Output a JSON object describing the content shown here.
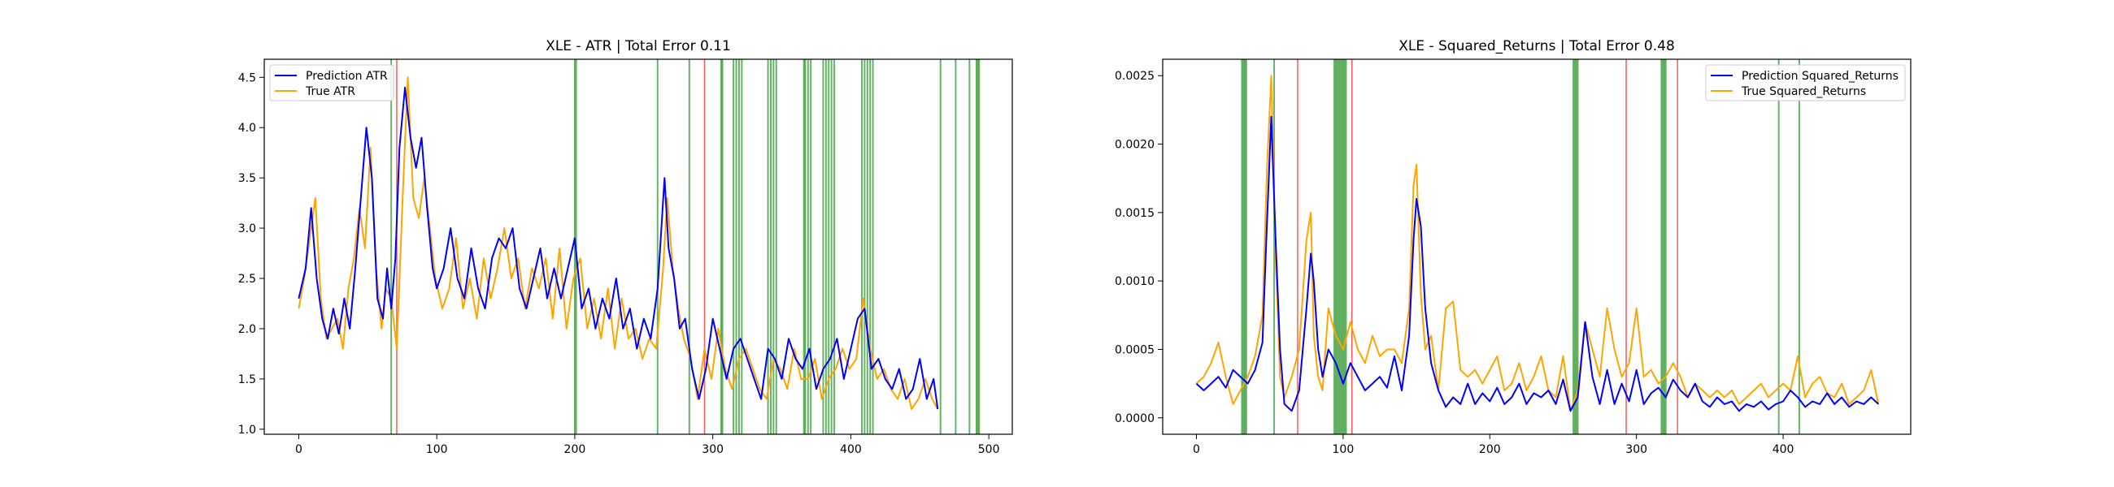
{
  "chart_data": [
    {
      "type": "line",
      "title": "XLE - ATR | Total Error 0.11",
      "xlabel": "",
      "ylabel": "",
      "xlim": [
        -25,
        517
      ],
      "ylim": [
        0.95,
        4.68
      ],
      "xticks": [
        0,
        100,
        200,
        300,
        400,
        500
      ],
      "yticks": [
        1.0,
        1.5,
        2.0,
        2.5,
        3.0,
        3.5,
        4.0,
        4.5
      ],
      "grid": false,
      "legend_position": "top-left",
      "colors": {
        "prediction": "#0000ff",
        "true": "#ffa500",
        "green_vline": "#008000",
        "red_vline": "#ff0000"
      },
      "series": [
        {
          "name": "Prediction ATR",
          "x": [
            0,
            5,
            9,
            13,
            17,
            21,
            25,
            29,
            33,
            37,
            41,
            45,
            49,
            53,
            57,
            61,
            64,
            67,
            70,
            73,
            77,
            81,
            85,
            89,
            93,
            97,
            100,
            105,
            110,
            115,
            120,
            125,
            130,
            135,
            140,
            145,
            150,
            155,
            160,
            165,
            170,
            175,
            180,
            185,
            190,
            195,
            200,
            205,
            210,
            215,
            220,
            225,
            230,
            235,
            240,
            245,
            250,
            255,
            260,
            265,
            268,
            272,
            276,
            280,
            285,
            290,
            295,
            300,
            305,
            310,
            315,
            320,
            325,
            330,
            335,
            340,
            345,
            350,
            355,
            360,
            365,
            370,
            375,
            380,
            385,
            390,
            395,
            400,
            405,
            410,
            415,
            420,
            425,
            430,
            435,
            440,
            445,
            450,
            455,
            460,
            463
          ],
          "values": [
            2.3,
            2.6,
            3.2,
            2.5,
            2.1,
            1.9,
            2.2,
            1.95,
            2.3,
            2.0,
            2.6,
            3.3,
            4.0,
            3.5,
            2.3,
            2.1,
            2.6,
            2.2,
            2.7,
            3.8,
            4.4,
            3.9,
            3.6,
            3.9,
            3.2,
            2.6,
            2.4,
            2.6,
            3.0,
            2.5,
            2.3,
            2.8,
            2.4,
            2.2,
            2.7,
            2.9,
            2.8,
            3.0,
            2.4,
            2.2,
            2.5,
            2.8,
            2.3,
            2.6,
            2.3,
            2.6,
            2.9,
            2.2,
            2.4,
            2.0,
            2.3,
            2.1,
            2.5,
            2.0,
            2.2,
            1.8,
            2.1,
            1.9,
            2.4,
            3.5,
            2.8,
            2.5,
            2.0,
            2.1,
            1.6,
            1.3,
            1.6,
            2.1,
            1.8,
            1.5,
            1.8,
            1.9,
            1.7,
            1.5,
            1.3,
            1.8,
            1.7,
            1.5,
            1.9,
            1.7,
            1.6,
            1.8,
            1.4,
            1.6,
            1.7,
            1.9,
            1.5,
            1.8,
            2.1,
            2.2,
            1.6,
            1.7,
            1.5,
            1.4,
            1.6,
            1.3,
            1.4,
            1.7,
            1.3,
            1.5,
            1.2
          ]
        },
        {
          "name": "True ATR",
          "x": [
            0,
            4,
            8,
            12,
            16,
            20,
            24,
            28,
            32,
            36,
            40,
            44,
            48,
            52,
            56,
            60,
            63,
            67,
            71,
            75,
            79,
            83,
            87,
            91,
            95,
            99,
            104,
            109,
            114,
            119,
            124,
            129,
            134,
            139,
            144,
            149,
            154,
            159,
            164,
            169,
            174,
            179,
            184,
            189,
            194,
            199,
            204,
            209,
            214,
            219,
            224,
            229,
            234,
            239,
            244,
            249,
            254,
            259,
            264,
            267,
            271,
            275,
            279,
            284,
            289,
            294,
            299,
            304,
            309,
            314,
            319,
            324,
            329,
            334,
            339,
            344,
            349,
            354,
            359,
            364,
            369,
            374,
            379,
            384,
            389,
            394,
            399,
            404,
            409,
            414,
            419,
            424,
            429,
            434,
            439,
            444,
            449,
            454,
            459,
            463
          ],
          "values": [
            2.2,
            2.5,
            2.9,
            3.3,
            2.3,
            1.9,
            2.0,
            2.1,
            1.8,
            2.4,
            2.7,
            3.2,
            2.8,
            3.8,
            2.6,
            2.0,
            2.4,
            2.3,
            1.8,
            3.2,
            4.5,
            3.3,
            3.1,
            3.5,
            3.0,
            2.5,
            2.2,
            2.4,
            2.9,
            2.2,
            2.5,
            2.1,
            2.7,
            2.3,
            2.6,
            3.0,
            2.5,
            2.7,
            2.2,
            2.6,
            2.4,
            2.7,
            2.1,
            2.8,
            2.0,
            2.5,
            2.7,
            2.0,
            2.3,
            1.9,
            2.4,
            1.8,
            2.3,
            1.9,
            2.0,
            1.7,
            1.9,
            1.8,
            2.6,
            3.3,
            2.6,
            2.2,
            1.9,
            1.7,
            1.3,
            1.8,
            1.5,
            2.0,
            1.6,
            1.4,
            1.7,
            1.8,
            1.6,
            1.4,
            1.3,
            1.7,
            1.6,
            1.4,
            1.8,
            1.5,
            1.5,
            1.7,
            1.3,
            1.5,
            1.6,
            1.8,
            1.6,
            1.7,
            2.3,
            1.8,
            1.5,
            1.6,
            1.4,
            1.3,
            1.5,
            1.2,
            1.3,
            1.5,
            1.3,
            1.2
          ]
        }
      ],
      "vlines_green": [
        67,
        200,
        201,
        260,
        283,
        306,
        307,
        315,
        317,
        319,
        321,
        340,
        342,
        344,
        346,
        366,
        367,
        369,
        371,
        380,
        382,
        384,
        386,
        388,
        408,
        410,
        412,
        414,
        416,
        465,
        476,
        486,
        491,
        492,
        493
      ],
      "vlines_red": [
        71,
        294
      ]
    },
    {
      "type": "line",
      "title": "XLE - Squared_Returns | Total Error 0.48",
      "xlabel": "",
      "ylabel": "",
      "xlim": [
        -23,
        487
      ],
      "ylim": [
        -0.00012,
        0.00262
      ],
      "xticks": [
        0,
        100,
        200,
        300,
        400
      ],
      "yticks": [
        0.0,
        0.0005,
        0.001,
        0.0015,
        0.002,
        0.0025
      ],
      "ytick_labels": [
        "0.0000",
        "0.0005",
        "0.0010",
        "0.0015",
        "0.0020",
        "0.0025"
      ],
      "grid": false,
      "legend_position": "top-right",
      "colors": {
        "prediction": "#0000ff",
        "true": "#ffa500",
        "green_vline": "#008000",
        "red_vline": "#ff0000"
      },
      "series": [
        {
          "name": "Prediction Squared_Returns",
          "x": [
            0,
            5,
            10,
            15,
            20,
            25,
            30,
            35,
            40,
            45,
            48,
            51,
            54,
            57,
            60,
            65,
            70,
            75,
            78,
            80,
            83,
            86,
            90,
            95,
            100,
            105,
            110,
            115,
            120,
            125,
            130,
            135,
            140,
            145,
            148,
            150,
            153,
            156,
            160,
            165,
            170,
            175,
            180,
            185,
            190,
            195,
            200,
            205,
            210,
            215,
            220,
            225,
            230,
            235,
            240,
            245,
            250,
            255,
            260,
            265,
            270,
            275,
            280,
            285,
            290,
            295,
            300,
            305,
            310,
            315,
            320,
            325,
            330,
            335,
            340,
            345,
            350,
            355,
            360,
            365,
            370,
            375,
            380,
            385,
            390,
            395,
            400,
            405,
            410,
            415,
            420,
            425,
            430,
            435,
            440,
            445,
            450,
            455,
            460,
            465
          ],
          "values": [
            0.00025,
            0.0002,
            0.00025,
            0.0003,
            0.00022,
            0.00035,
            0.0003,
            0.00025,
            0.00035,
            0.00055,
            0.0014,
            0.0022,
            0.0013,
            0.0005,
            0.0001,
            5e-05,
            0.0002,
            0.0008,
            0.0012,
            0.001,
            0.0005,
            0.0003,
            0.0005,
            0.0004,
            0.00025,
            0.0004,
            0.0003,
            0.0002,
            0.00025,
            0.0003,
            0.00022,
            0.00045,
            0.0002,
            0.0006,
            0.0013,
            0.0016,
            0.0014,
            0.0008,
            0.0004,
            0.0002,
            8e-05,
            0.00015,
            0.0001,
            0.00025,
            0.0001,
            0.00018,
            0.00012,
            0.00022,
            0.0001,
            0.00015,
            0.00025,
            0.0001,
            0.00018,
            0.00015,
            0.0002,
            0.0001,
            0.00028,
            5e-05,
            0.00015,
            0.0007,
            0.0003,
            0.0001,
            0.00035,
            0.0001,
            0.00025,
            0.00012,
            0.00035,
            0.0001,
            0.00018,
            0.00022,
            0.00015,
            0.00028,
            0.0002,
            0.00015,
            0.00025,
            0.00012,
            8e-05,
            0.00015,
            0.0001,
            0.00012,
            5e-05,
            0.0001,
            8e-05,
            0.00012,
            6e-05,
            0.0001,
            0.00012,
            0.0002,
            0.00015,
            8e-05,
            0.00012,
            0.0001,
            0.00018,
            0.0001,
            0.00015,
            8e-05,
            0.00012,
            0.0001,
            0.00015,
            0.0001
          ]
        },
        {
          "name": "True Squared_Returns",
          "x": [
            0,
            5,
            10,
            15,
            20,
            25,
            30,
            35,
            40,
            45,
            48,
            51,
            54,
            57,
            60,
            65,
            70,
            75,
            78,
            80,
            83,
            86,
            90,
            95,
            100,
            105,
            110,
            115,
            120,
            125,
            130,
            135,
            140,
            145,
            148,
            150,
            153,
            156,
            160,
            165,
            170,
            175,
            180,
            185,
            190,
            195,
            200,
            205,
            210,
            215,
            220,
            225,
            230,
            235,
            240,
            245,
            250,
            255,
            260,
            265,
            270,
            275,
            280,
            285,
            290,
            295,
            300,
            305,
            310,
            315,
            320,
            325,
            330,
            335,
            340,
            345,
            350,
            355,
            360,
            365,
            370,
            375,
            380,
            385,
            390,
            395,
            400,
            405,
            410,
            415,
            420,
            425,
            430,
            435,
            440,
            445,
            450,
            455,
            460,
            465
          ],
          "values": [
            0.00025,
            0.0003,
            0.0004,
            0.00055,
            0.0003,
            0.0001,
            0.0002,
            0.0003,
            0.00045,
            0.00075,
            0.0018,
            0.0025,
            0.0012,
            0.0003,
            0.00015,
            0.0003,
            0.0005,
            0.0013,
            0.0015,
            0.0006,
            0.0003,
            0.0002,
            0.0008,
            0.0006,
            0.0005,
            0.0007,
            0.0005,
            0.0004,
            0.0006,
            0.00045,
            0.0005,
            0.0005,
            0.0004,
            0.0008,
            0.0017,
            0.00185,
            0.0009,
            0.0005,
            0.0006,
            0.0002,
            0.0008,
            0.00085,
            0.00035,
            0.0003,
            0.00035,
            0.00025,
            0.00035,
            0.00045,
            0.0002,
            0.00025,
            0.0004,
            0.0002,
            0.0003,
            0.00045,
            0.0002,
            0.00015,
            0.00045,
            5e-05,
            0.0002,
            0.0007,
            0.0005,
            0.0003,
            0.0008,
            0.0005,
            0.0003,
            0.0004,
            0.0008,
            0.0003,
            0.00035,
            0.00025,
            0.0003,
            0.0004,
            0.0003,
            0.00015,
            0.00025,
            0.0002,
            0.00015,
            0.0002,
            0.00015,
            0.0002,
            0.0001,
            0.00015,
            0.0002,
            0.00025,
            0.00015,
            0.0002,
            0.00025,
            0.0002,
            0.00045,
            0.00015,
            0.00025,
            0.0003,
            0.00018,
            0.00015,
            0.00025,
            0.0001,
            0.00015,
            0.0002,
            0.00035,
            0.0001
          ]
        }
      ],
      "vlines_green": [
        31,
        32,
        33,
        34,
        53,
        94,
        95,
        96,
        97,
        98,
        99,
        100,
        101,
        102,
        257,
        258,
        259,
        260,
        317,
        318,
        319,
        320,
        397,
        411
      ],
      "vlines_red": [
        69,
        106,
        293,
        328
      ]
    }
  ]
}
